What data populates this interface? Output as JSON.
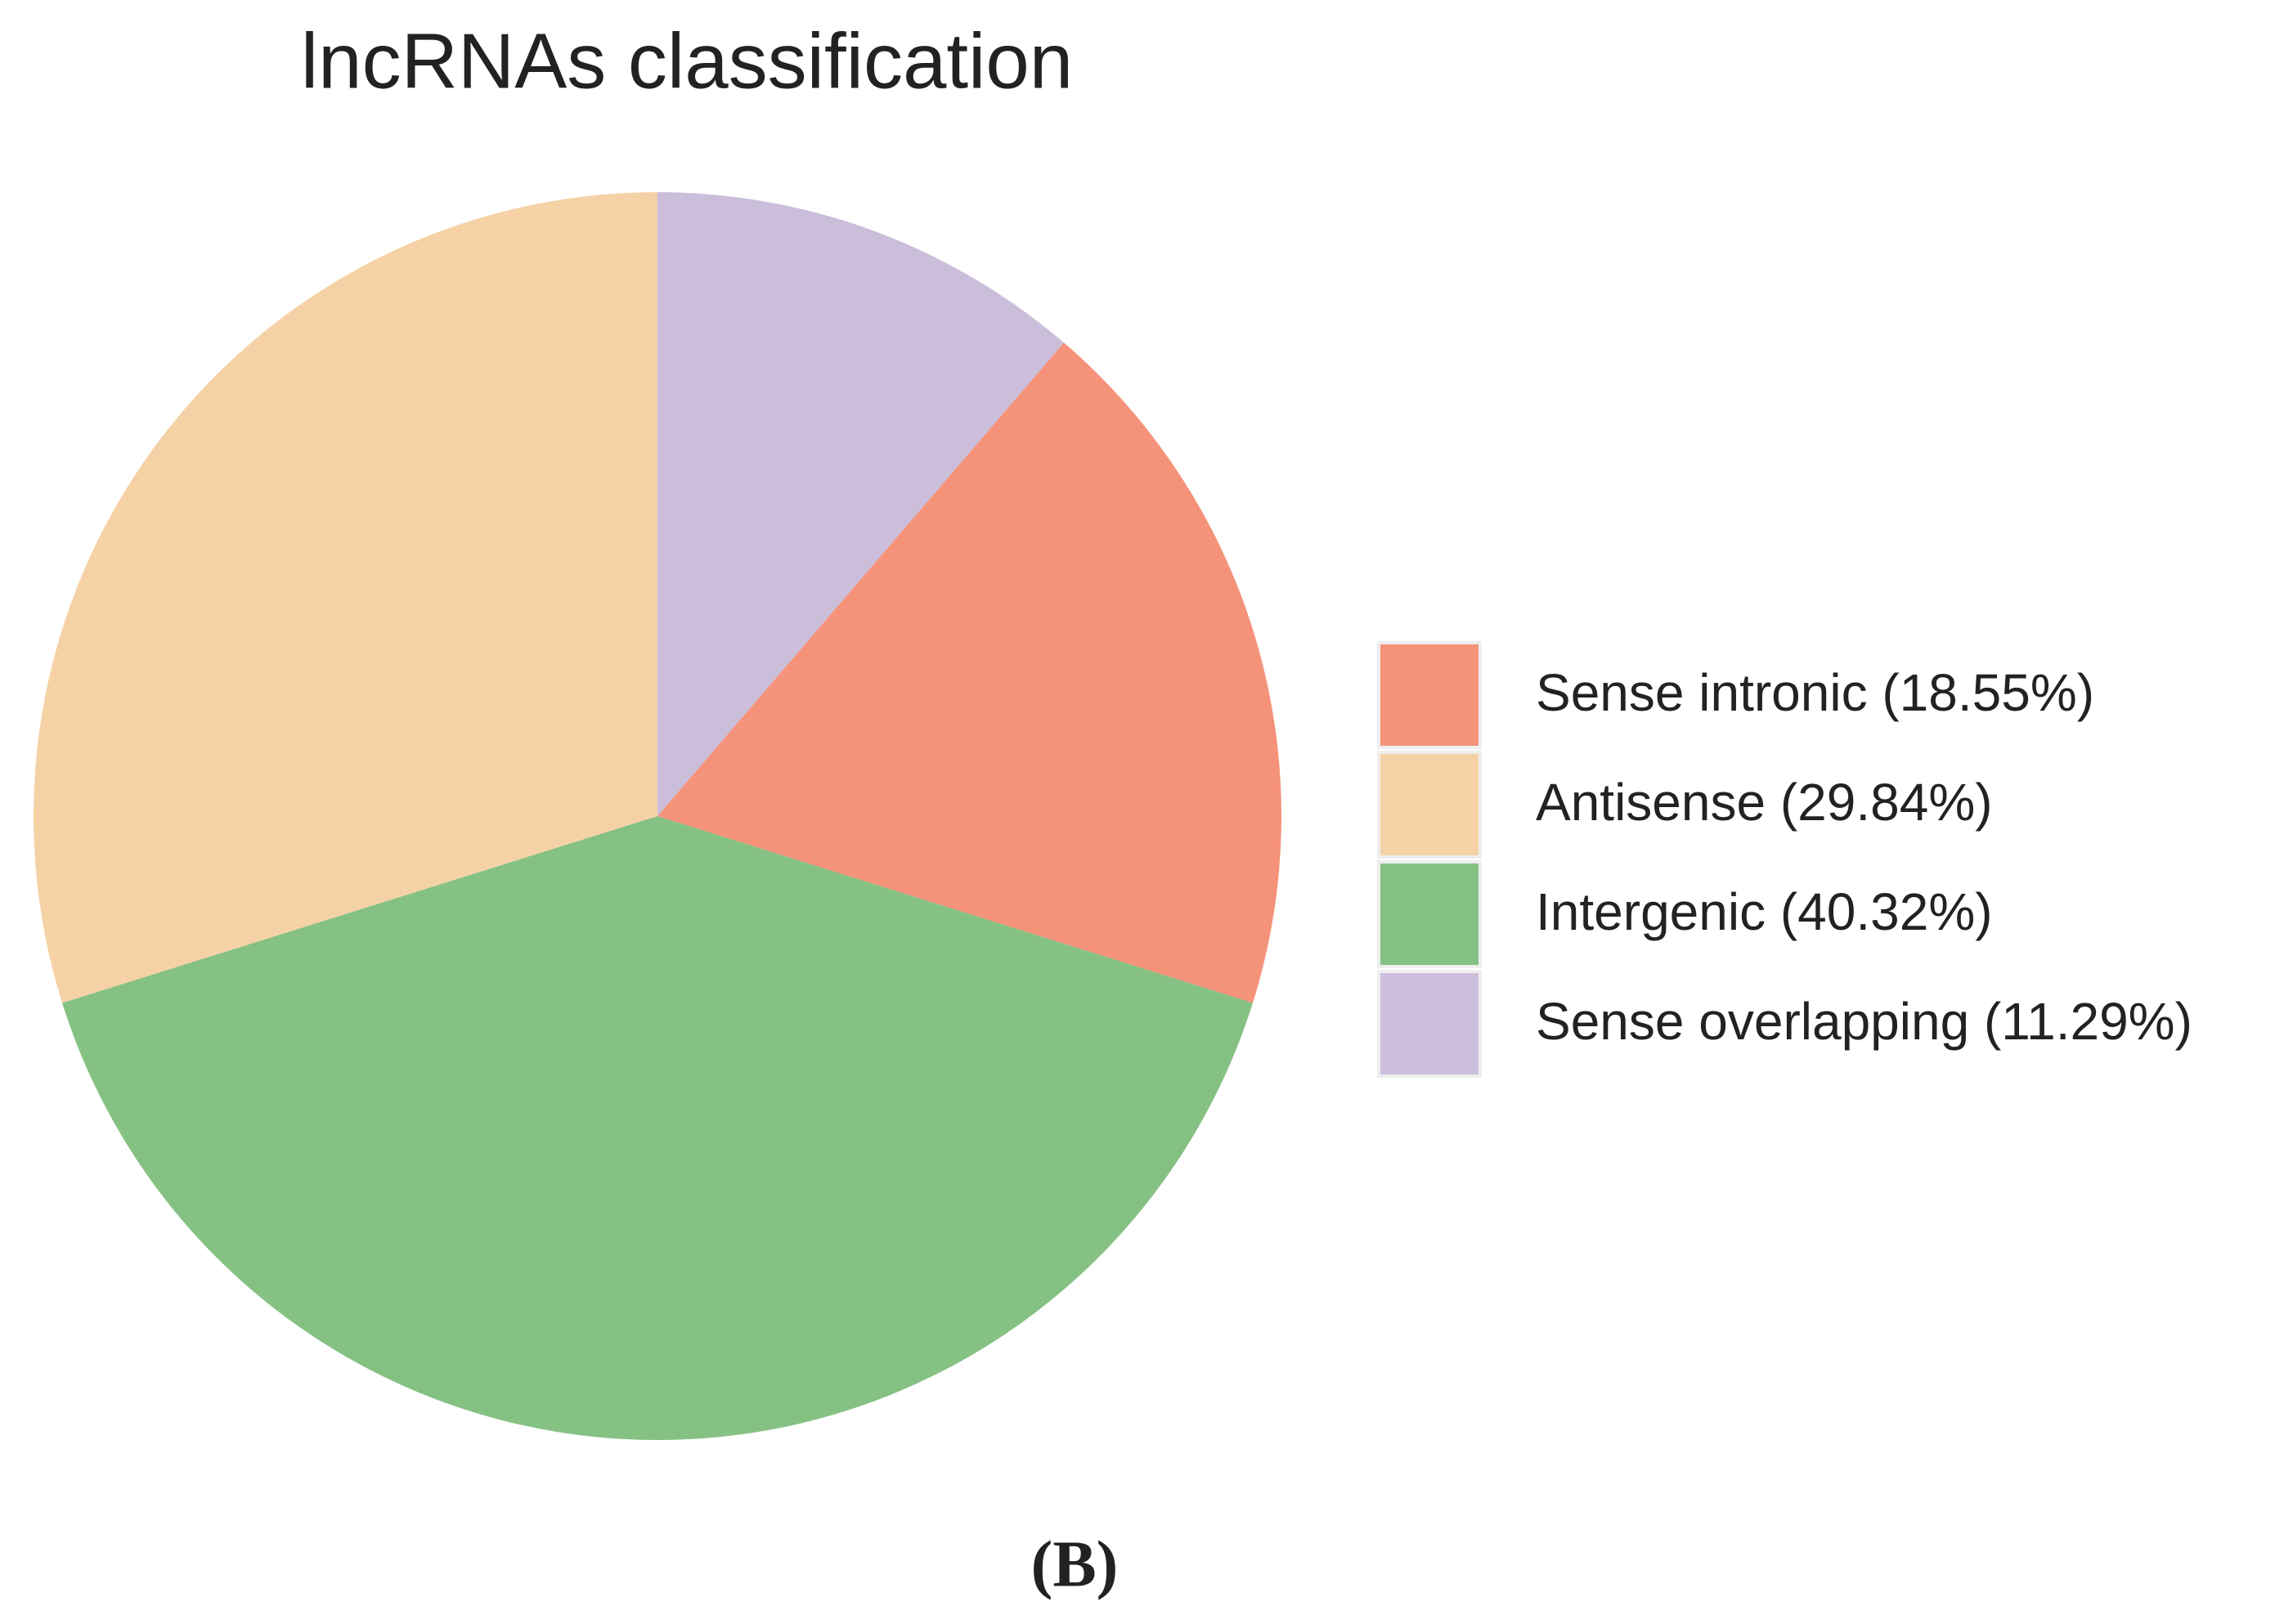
{
  "chart_data": {
    "type": "pie",
    "title": "lncRNAs classification",
    "categories": [
      "Sense intronic (18.55%)",
      "Antisense (29.84%)",
      "Intergenic (40.32%)",
      "Sense overlapping (11.29%)"
    ],
    "values": [
      18.55,
      29.84,
      40.32,
      11.29
    ],
    "colors": [
      "#f4937a",
      "#f5d2a6",
      "#86c184",
      "#cbbedb"
    ],
    "legend": "right",
    "caption": "(B)"
  }
}
